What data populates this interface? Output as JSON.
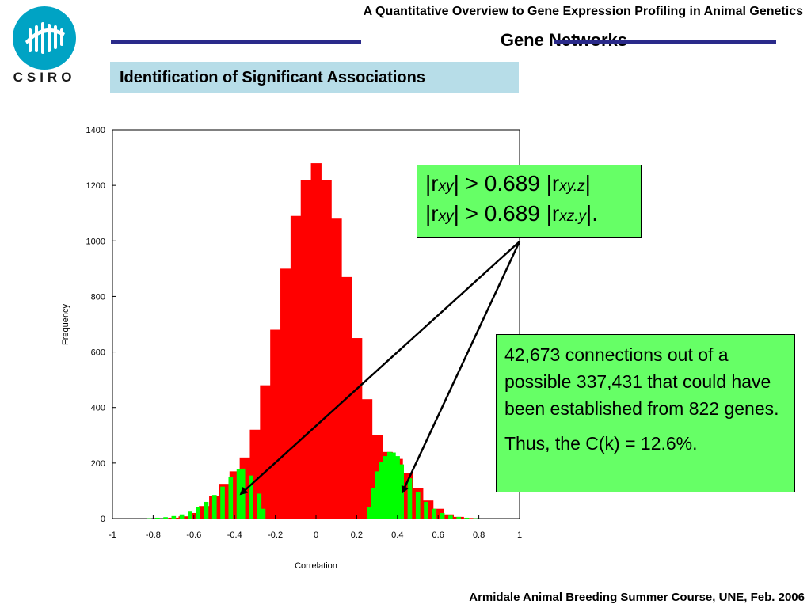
{
  "header": {
    "title": "A Quantitative Overview to Gene Expression Profiling in Animal Genetics"
  },
  "logo": {
    "text": "CSIRO"
  },
  "section": {
    "title": "Gene Networks"
  },
  "subtitle": "Identification of Significant Associations",
  "annotation_threshold": {
    "line1": {
      "r": "|r",
      "sub1": "xy",
      "mid": "| > 0.689 |r",
      "sub2": "xy.z",
      "end": "|"
    },
    "line2": {
      "r": "|r",
      "sub1": "xy",
      "mid": "| > 0.689 |r",
      "sub2": "xz.y",
      "end": "|."
    }
  },
  "annotation_connections": {
    "text": "42,673 connections out of a possible 337,431 that could have been established from 822 genes.",
    "ck": "Thus, the C(k) = 12.6%."
  },
  "footer": "Armidale Animal Breeding Summer Course, UNE, Feb. 2006",
  "colors": {
    "all": "#ff0000",
    "significant": "#00ff00",
    "note_bg": "#66ff66",
    "subtitle_bg": "#b7dde8",
    "rule": "#2a2a8a"
  },
  "chart_data": {
    "type": "bar",
    "xlabel": "Correlation",
    "ylabel": "Frequency",
    "xlim": [
      -1,
      1
    ],
    "ylim": [
      0,
      1400
    ],
    "xticks": [
      "-1",
      "-0.8",
      "-0.6",
      "-0.4",
      "-0.2",
      "0",
      "0.2",
      "0.4",
      "0.6",
      "0.8",
      "1"
    ],
    "yticks": [
      "0",
      "200",
      "400",
      "600",
      "800",
      "1000",
      "1200",
      "1400"
    ],
    "series": [
      {
        "x": [
          -0.7,
          -0.65,
          -0.6,
          -0.55,
          -0.5,
          -0.45,
          -0.4,
          -0.35,
          -0.3,
          -0.25,
          -0.2,
          -0.15,
          -0.1,
          -0.05,
          0,
          0.05,
          0.1,
          0.15,
          0.2,
          0.25,
          0.3,
          0.35,
          0.4,
          0.45,
          0.5,
          0.55,
          0.6,
          0.65,
          0.7,
          0.75
        ],
        "values": [
          3,
          8,
          20,
          45,
          80,
          125,
          170,
          220,
          320,
          480,
          680,
          900,
          1090,
          1220,
          1280,
          1220,
          1080,
          870,
          650,
          430,
          300,
          240,
          215,
          165,
          110,
          65,
          35,
          15,
          6,
          2
        ]
      },
      {
        "x": [
          -0.82,
          -0.78,
          -0.74,
          -0.7,
          -0.66,
          -0.62,
          -0.58,
          -0.54,
          -0.5,
          -0.46,
          -0.42,
          -0.38,
          -0.36,
          -0.32,
          -0.28,
          -0.26,
          -0.24,
          0.24,
          0.26,
          0.28,
          0.3,
          0.32,
          0.34,
          0.36,
          0.38,
          0.4,
          0.42,
          0.46,
          0.5,
          0.54,
          0.58,
          0.62,
          0.66,
          0.7,
          0.74,
          0.78,
          0.82,
          0.86
        ],
        "values": [
          1,
          3,
          5,
          9,
          15,
          25,
          40,
          60,
          85,
          115,
          150,
          178,
          180,
          155,
          90,
          35,
          0,
          0,
          40,
          110,
          170,
          205,
          225,
          240,
          238,
          225,
          195,
          145,
          95,
          60,
          35,
          20,
          11,
          6,
          3,
          1,
          0,
          0
        ]
      }
    ]
  }
}
